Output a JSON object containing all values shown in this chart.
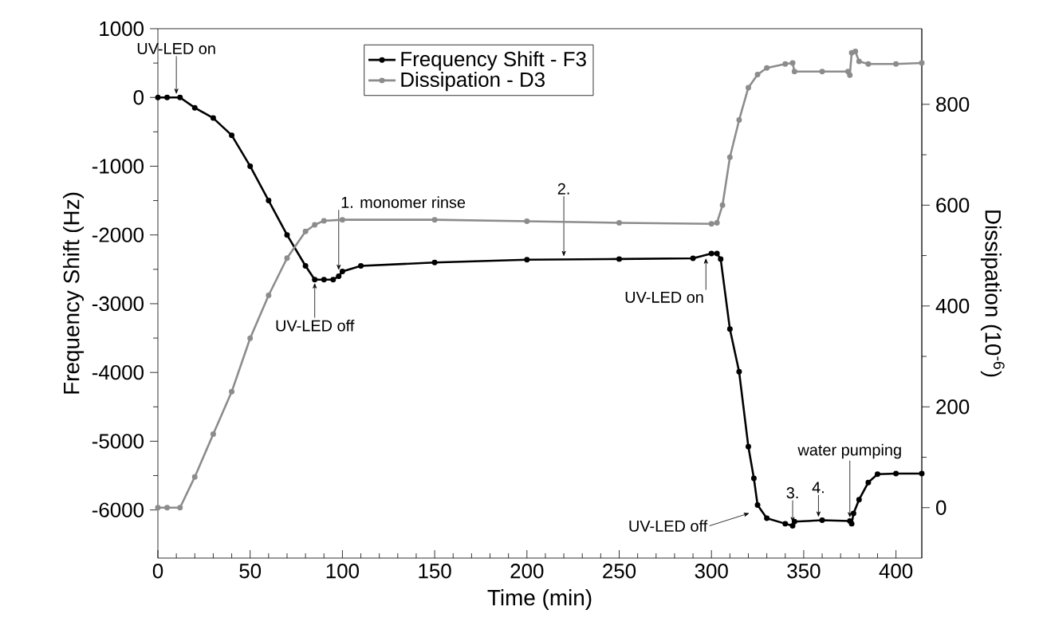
{
  "chart_data": {
    "type": "line",
    "xlabel": "Time (min)",
    "ylabel": "Frequency Shift (Hz)",
    "y2label": "Dissipation (10$^{-6}$)",
    "xlim": [
      0,
      414
    ],
    "xticks": [
      0,
      50,
      100,
      150,
      200,
      250,
      300,
      350,
      400
    ],
    "ylim": [
      -6700,
      1000
    ],
    "yticks": [
      -6000,
      -5000,
      -4000,
      -3000,
      -2000,
      -1000,
      0,
      1000
    ],
    "y2lim": [
      -100,
      950
    ],
    "y2ticks": [
      0,
      200,
      400,
      600,
      800
    ],
    "legend": "top",
    "marker": "circle",
    "line_style": "solid",
    "series": [
      {
        "name": "Frequency Shift - F3",
        "color": "#000000",
        "x": [
          0,
          5,
          12,
          20,
          30,
          40,
          50,
          60,
          70,
          80,
          85,
          90,
          95,
          98,
          100,
          110,
          150,
          200,
          250,
          290,
          300,
          303,
          305,
          310,
          315,
          320,
          323,
          325,
          330,
          340,
          344,
          345,
          360,
          375,
          376,
          377,
          380,
          385,
          390,
          400,
          414
        ],
        "values": [
          0,
          0,
          0,
          -150,
          -300,
          -550,
          -1000,
          -1500,
          -2000,
          -2450,
          -2650,
          -2650,
          -2650,
          -2600,
          -2530,
          -2450,
          -2400,
          -2360,
          -2350,
          -2340,
          -2270,
          -2270,
          -2350,
          -3370,
          -3990,
          -5080,
          -5540,
          -5930,
          -6120,
          -6200,
          -6230,
          -6170,
          -6150,
          -6160,
          -6200,
          -6050,
          -5850,
          -5600,
          -5480,
          -5470,
          -5470
        ]
      },
      {
        "name": "Dissipation - D3",
        "color": "#8c8c8c",
        "axis": "y2",
        "x": [
          0,
          5,
          12,
          20,
          30,
          40,
          50,
          60,
          70,
          80,
          85,
          90,
          100,
          150,
          200,
          250,
          300,
          303,
          306,
          310,
          315,
          320,
          325,
          330,
          340,
          344,
          345,
          360,
          374,
          375,
          376,
          378,
          380,
          385,
          400,
          414
        ],
        "values": [
          0,
          0,
          0,
          61,
          146,
          230,
          336,
          421,
          495,
          548,
          561,
          569,
          571,
          571,
          568,
          565,
          563,
          565,
          600,
          695,
          769,
          833,
          859,
          872,
          880,
          882,
          865,
          865,
          865,
          858,
          902,
          905,
          885,
          880,
          880,
          882
        ]
      }
    ],
    "annotations": [
      {
        "text": "UV-LED on",
        "x": 10,
        "y": 0
      },
      {
        "text": "UV-LED off",
        "x": 85,
        "y": -2650
      },
      {
        "text": "1. monomer rinse",
        "x": 98,
        "y": -2560
      },
      {
        "text": "2.",
        "x": 220,
        "y": -2360
      },
      {
        "text": "UV-LED on",
        "x": 297,
        "y": -2290
      },
      {
        "text": "UV-LED off",
        "x": 323,
        "y": -6000
      },
      {
        "text": "3.",
        "x": 344,
        "y": -6230
      },
      {
        "text": "4.",
        "x": 358,
        "y": -6150
      },
      {
        "text": "water pumping",
        "x": 375,
        "y": -6160
      }
    ]
  }
}
